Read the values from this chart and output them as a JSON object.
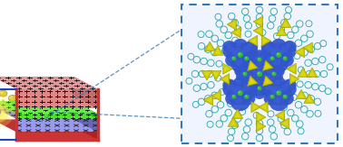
{
  "fig_width": 3.78,
  "fig_height": 1.63,
  "dpi": 100,
  "bg_color": "#ffffff",
  "device": {
    "pink_top_face": "#d88888",
    "pink_front_face": "#cc7777",
    "pink_right_face": "#b86666",
    "green_top_face": "#55dd33",
    "green_front_face": "#44bb22",
    "green_right_face": "#339911",
    "blue_top_face": "#9999ee",
    "blue_front_face": "#8888dd",
    "blue_right_face": "#6666bb",
    "red_frame_color": "#cc3333",
    "red_frame_right": "#aa2222",
    "red_frame_top": "#bb3333",
    "wire_color": "#2244cc",
    "plus_color": "#111111",
    "cross_color": "#111111",
    "arrow_shaft_color": "#ddcc00",
    "arrow_head_color": "#ddcc00",
    "ball_color": "#ddcc44",
    "ball_dark": "#aa9900",
    "glow_color": "#ffee44",
    "glow_color2": "#ffdd00",
    "bulb_color": "#f0f0f0"
  },
  "inset": {
    "box_edge_color": "#3377bb",
    "box_fill": "#f0f4ff",
    "blue_cluster": "#3355cc",
    "blue_cluster2": "#4466dd",
    "yellow_tetra": "#cccc00",
    "yellow_tetra2": "#dddd00",
    "green_dot": "#33bb33",
    "ring_color": "#33aaaa",
    "ring_color2": "#55cccc",
    "connector_color": "#3377bb"
  }
}
